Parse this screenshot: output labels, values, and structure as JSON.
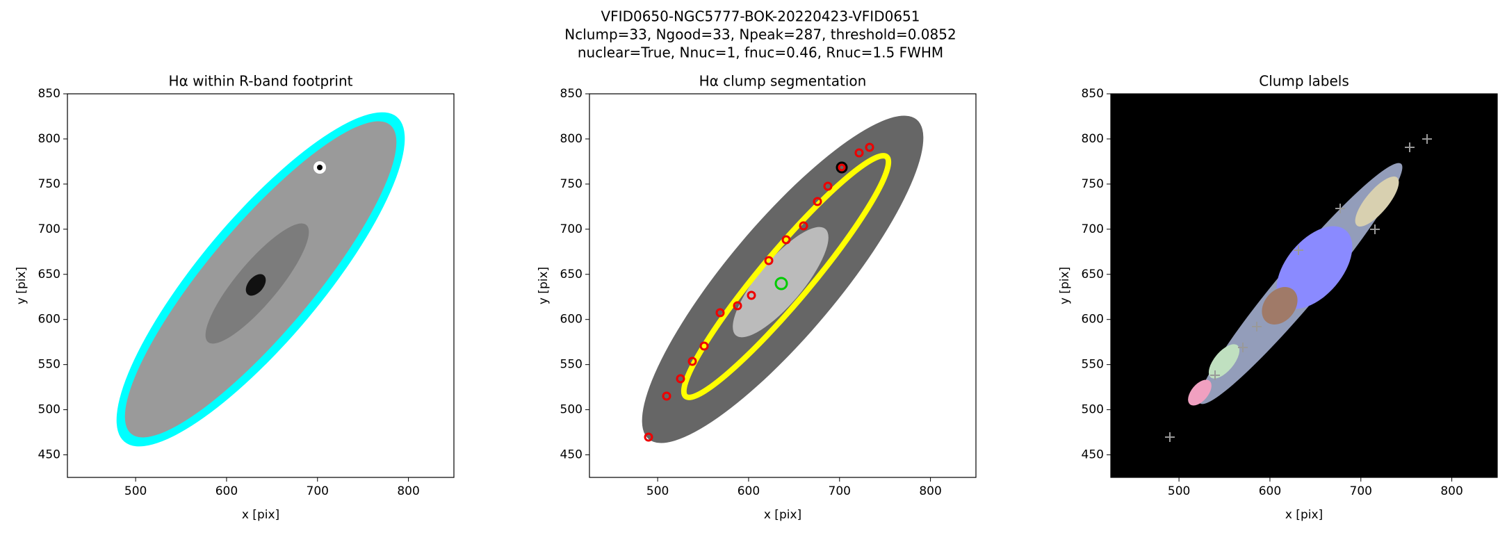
{
  "figure_title": [
    "VFID0650-NGC5777-BOK-20220423-VFID0651",
    "Nclump=33, Ngood=33, Npeak=287, threshold=0.0852",
    "nuclear=True, Nnuc=1, fnuc=0.46, Rnuc=1.5 FWHM"
  ],
  "chart_data": [
    {
      "type": "image",
      "title": "Hα within R-band footprint",
      "xlabel": "x [pix]",
      "ylabel": "y [pix]",
      "xlim": [
        425,
        850
      ],
      "ylim": [
        425,
        850
      ],
      "xticks": [
        500,
        600,
        700,
        800
      ],
      "yticks": [
        450,
        500,
        550,
        600,
        650,
        700,
        750,
        800,
        850
      ]
    },
    {
      "type": "image",
      "title": "Hα clump segmentation",
      "xlabel": "x [pix]",
      "ylabel": "y [pix]",
      "xlim": [
        425,
        850
      ],
      "ylim": [
        425,
        850
      ],
      "xticks": [
        500,
        600,
        700,
        800
      ],
      "yticks": [
        450,
        500,
        550,
        600,
        650,
        700,
        750,
        800,
        850
      ]
    },
    {
      "type": "image",
      "title": "Clump labels",
      "xlabel": "x [pix]",
      "ylabel": "y [pix]",
      "xlim": [
        425,
        850
      ],
      "ylim": [
        425,
        850
      ],
      "xticks": [
        500,
        600,
        700,
        800
      ],
      "yticks": [
        450,
        500,
        550,
        600,
        650,
        700,
        750,
        800,
        850
      ]
    }
  ]
}
